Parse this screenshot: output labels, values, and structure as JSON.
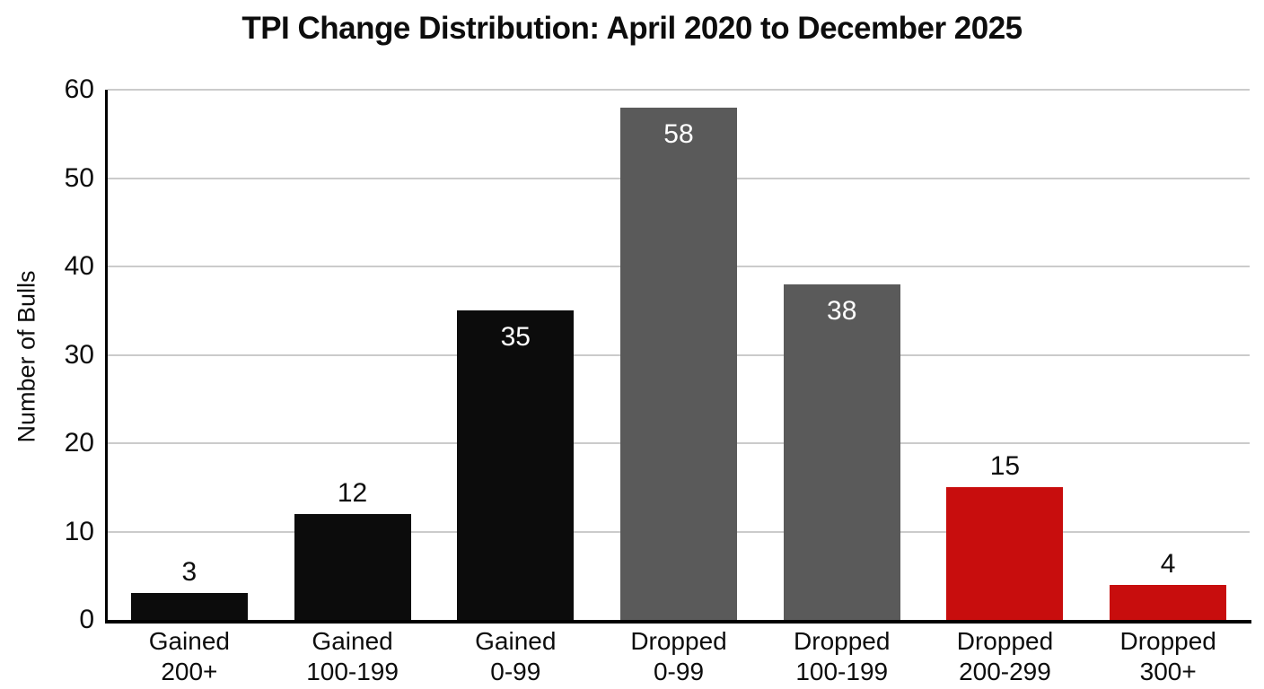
{
  "chart_data": {
    "type": "bar",
    "title": "TPI Change Distribution: April 2020 to December 2025",
    "ylabel": "Number of Bulls",
    "xlabel": "",
    "categories": [
      "Gained\n200+",
      "Gained\n100-199",
      "Gained\n0-99",
      "Dropped\n0-99",
      "Dropped\n100-199",
      "Dropped\n200-299",
      "Dropped\n300+"
    ],
    "values": [
      3,
      12,
      35,
      58,
      38,
      15,
      4
    ],
    "bar_colors": [
      "#0c0c0c",
      "#0c0c0c",
      "#0c0c0c",
      "#5a5a5a",
      "#5a5a5a",
      "#c80d0d",
      "#c80d0d"
    ],
    "value_label_positions": [
      "above",
      "above",
      "inside",
      "inside",
      "inside",
      "above",
      "above"
    ],
    "value_label_colors": [
      "#0d0d0d",
      "#0d0d0d",
      "#ffffff",
      "#ffffff",
      "#ffffff",
      "#0d0d0d",
      "#0d0d0d"
    ],
    "yticks": [
      0,
      10,
      20,
      30,
      40,
      50,
      60
    ],
    "ylim": [
      0,
      60
    ],
    "grid": true,
    "gridline_color": "#cbcbcb",
    "background_color": "#ffffff",
    "legend": null
  }
}
